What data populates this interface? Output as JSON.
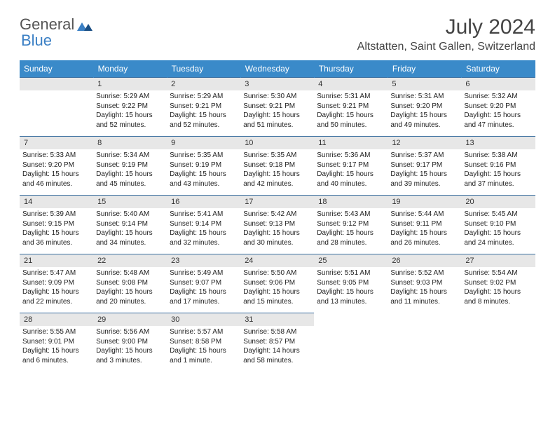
{
  "logo": {
    "text1": "General",
    "text2": "Blue"
  },
  "title": "July 2024",
  "location": "Altstatten, Saint Gallen, Switzerland",
  "colors": {
    "header_bg": "#3a8ac9",
    "header_text": "#ffffff",
    "daynum_bg": "#e7e7e7",
    "border": "#3a6fa0",
    "logo_gray": "#555555",
    "logo_blue": "#3a7fc4"
  },
  "weekdays": [
    "Sunday",
    "Monday",
    "Tuesday",
    "Wednesday",
    "Thursday",
    "Friday",
    "Saturday"
  ],
  "weeks": [
    [
      {
        "n": "",
        "sr": "",
        "ss": "",
        "dl": ""
      },
      {
        "n": "1",
        "sr": "Sunrise: 5:29 AM",
        "ss": "Sunset: 9:22 PM",
        "dl": "Daylight: 15 hours and 52 minutes."
      },
      {
        "n": "2",
        "sr": "Sunrise: 5:29 AM",
        "ss": "Sunset: 9:21 PM",
        "dl": "Daylight: 15 hours and 52 minutes."
      },
      {
        "n": "3",
        "sr": "Sunrise: 5:30 AM",
        "ss": "Sunset: 9:21 PM",
        "dl": "Daylight: 15 hours and 51 minutes."
      },
      {
        "n": "4",
        "sr": "Sunrise: 5:31 AM",
        "ss": "Sunset: 9:21 PM",
        "dl": "Daylight: 15 hours and 50 minutes."
      },
      {
        "n": "5",
        "sr": "Sunrise: 5:31 AM",
        "ss": "Sunset: 9:20 PM",
        "dl": "Daylight: 15 hours and 49 minutes."
      },
      {
        "n": "6",
        "sr": "Sunrise: 5:32 AM",
        "ss": "Sunset: 9:20 PM",
        "dl": "Daylight: 15 hours and 47 minutes."
      }
    ],
    [
      {
        "n": "7",
        "sr": "Sunrise: 5:33 AM",
        "ss": "Sunset: 9:20 PM",
        "dl": "Daylight: 15 hours and 46 minutes."
      },
      {
        "n": "8",
        "sr": "Sunrise: 5:34 AM",
        "ss": "Sunset: 9:19 PM",
        "dl": "Daylight: 15 hours and 45 minutes."
      },
      {
        "n": "9",
        "sr": "Sunrise: 5:35 AM",
        "ss": "Sunset: 9:19 PM",
        "dl": "Daylight: 15 hours and 43 minutes."
      },
      {
        "n": "10",
        "sr": "Sunrise: 5:35 AM",
        "ss": "Sunset: 9:18 PM",
        "dl": "Daylight: 15 hours and 42 minutes."
      },
      {
        "n": "11",
        "sr": "Sunrise: 5:36 AM",
        "ss": "Sunset: 9:17 PM",
        "dl": "Daylight: 15 hours and 40 minutes."
      },
      {
        "n": "12",
        "sr": "Sunrise: 5:37 AM",
        "ss": "Sunset: 9:17 PM",
        "dl": "Daylight: 15 hours and 39 minutes."
      },
      {
        "n": "13",
        "sr": "Sunrise: 5:38 AM",
        "ss": "Sunset: 9:16 PM",
        "dl": "Daylight: 15 hours and 37 minutes."
      }
    ],
    [
      {
        "n": "14",
        "sr": "Sunrise: 5:39 AM",
        "ss": "Sunset: 9:15 PM",
        "dl": "Daylight: 15 hours and 36 minutes."
      },
      {
        "n": "15",
        "sr": "Sunrise: 5:40 AM",
        "ss": "Sunset: 9:14 PM",
        "dl": "Daylight: 15 hours and 34 minutes."
      },
      {
        "n": "16",
        "sr": "Sunrise: 5:41 AM",
        "ss": "Sunset: 9:14 PM",
        "dl": "Daylight: 15 hours and 32 minutes."
      },
      {
        "n": "17",
        "sr": "Sunrise: 5:42 AM",
        "ss": "Sunset: 9:13 PM",
        "dl": "Daylight: 15 hours and 30 minutes."
      },
      {
        "n": "18",
        "sr": "Sunrise: 5:43 AM",
        "ss": "Sunset: 9:12 PM",
        "dl": "Daylight: 15 hours and 28 minutes."
      },
      {
        "n": "19",
        "sr": "Sunrise: 5:44 AM",
        "ss": "Sunset: 9:11 PM",
        "dl": "Daylight: 15 hours and 26 minutes."
      },
      {
        "n": "20",
        "sr": "Sunrise: 5:45 AM",
        "ss": "Sunset: 9:10 PM",
        "dl": "Daylight: 15 hours and 24 minutes."
      }
    ],
    [
      {
        "n": "21",
        "sr": "Sunrise: 5:47 AM",
        "ss": "Sunset: 9:09 PM",
        "dl": "Daylight: 15 hours and 22 minutes."
      },
      {
        "n": "22",
        "sr": "Sunrise: 5:48 AM",
        "ss": "Sunset: 9:08 PM",
        "dl": "Daylight: 15 hours and 20 minutes."
      },
      {
        "n": "23",
        "sr": "Sunrise: 5:49 AM",
        "ss": "Sunset: 9:07 PM",
        "dl": "Daylight: 15 hours and 17 minutes."
      },
      {
        "n": "24",
        "sr": "Sunrise: 5:50 AM",
        "ss": "Sunset: 9:06 PM",
        "dl": "Daylight: 15 hours and 15 minutes."
      },
      {
        "n": "25",
        "sr": "Sunrise: 5:51 AM",
        "ss": "Sunset: 9:05 PM",
        "dl": "Daylight: 15 hours and 13 minutes."
      },
      {
        "n": "26",
        "sr": "Sunrise: 5:52 AM",
        "ss": "Sunset: 9:03 PM",
        "dl": "Daylight: 15 hours and 11 minutes."
      },
      {
        "n": "27",
        "sr": "Sunrise: 5:54 AM",
        "ss": "Sunset: 9:02 PM",
        "dl": "Daylight: 15 hours and 8 minutes."
      }
    ],
    [
      {
        "n": "28",
        "sr": "Sunrise: 5:55 AM",
        "ss": "Sunset: 9:01 PM",
        "dl": "Daylight: 15 hours and 6 minutes."
      },
      {
        "n": "29",
        "sr": "Sunrise: 5:56 AM",
        "ss": "Sunset: 9:00 PM",
        "dl": "Daylight: 15 hours and 3 minutes."
      },
      {
        "n": "30",
        "sr": "Sunrise: 5:57 AM",
        "ss": "Sunset: 8:58 PM",
        "dl": "Daylight: 15 hours and 1 minute."
      },
      {
        "n": "31",
        "sr": "Sunrise: 5:58 AM",
        "ss": "Sunset: 8:57 PM",
        "dl": "Daylight: 14 hours and 58 minutes."
      },
      {
        "n": "",
        "sr": "",
        "ss": "",
        "dl": ""
      },
      {
        "n": "",
        "sr": "",
        "ss": "",
        "dl": ""
      },
      {
        "n": "",
        "sr": "",
        "ss": "",
        "dl": ""
      }
    ]
  ]
}
